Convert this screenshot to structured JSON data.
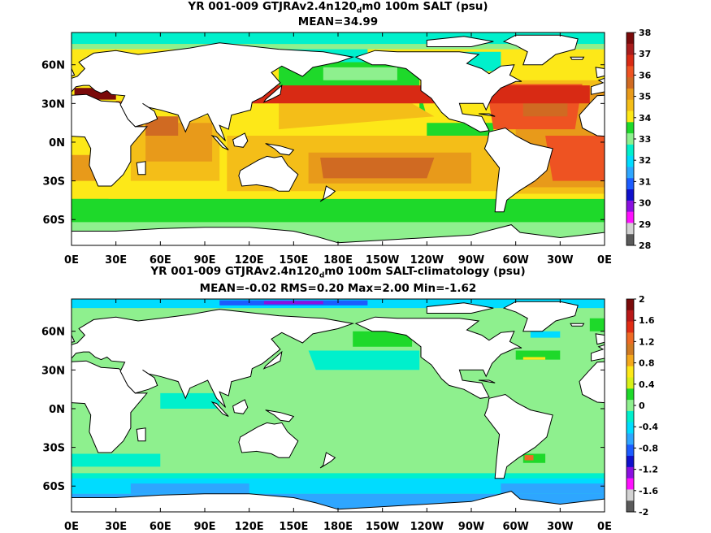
{
  "chart_data": [
    {
      "type": "heatmap",
      "title_prefix": "YR 001-009 GTJRAv2.4n120",
      "title_sub": "d",
      "title_suffix": "m0 100m SALT (psu)",
      "subtitle": "MEAN=34.99",
      "x_tick_labels": [
        "0E",
        "30E",
        "60E",
        "90E",
        "120E",
        "150E",
        "180E",
        "150W",
        "120W",
        "90W",
        "60W",
        "30W",
        "0E"
      ],
      "y_tick_labels": [
        "60N",
        "30N",
        "0N",
        "30S",
        "60S"
      ],
      "y_tick_values": [
        60,
        30,
        0,
        -30,
        -60
      ],
      "lon_range": [
        0,
        360
      ],
      "lat_range": [
        -80,
        85
      ],
      "colorbar": {
        "labels": [
          "38",
          "37",
          "36",
          "35",
          "34",
          "33",
          "32",
          "31",
          "30",
          "29",
          "28"
        ],
        "colors": [
          "#7a0a0a",
          "#a81c1c",
          "#d82a14",
          "#ee5322",
          "#d06a22",
          "#e89a1a",
          "#f4be18",
          "#fde818",
          "#1ed92a",
          "#8ef08e",
          "#00f0cc",
          "#00dcff",
          "#2ea6ff",
          "#1c5cff",
          "#1010cc",
          "#8a10e0",
          "#ff10ff",
          "#d2d2d2",
          "#5a5a5a"
        ]
      }
    },
    {
      "type": "heatmap",
      "title_prefix": "YR 001-009 GTJRAv2.4n120",
      "title_sub": "d",
      "title_suffix": "m0 100m SALT-climatology (psu)",
      "subtitle": "MEAN=-0.02   RMS=0.20   Max=2.00   Min=-1.62",
      "x_tick_labels": [
        "0E",
        "30E",
        "60E",
        "90E",
        "120E",
        "150E",
        "180E",
        "150W",
        "120W",
        "90W",
        "60W",
        "30W",
        "0E"
      ],
      "y_tick_labels": [
        "60N",
        "30N",
        "0N",
        "30S",
        "60S"
      ],
      "y_tick_values": [
        60,
        30,
        0,
        -30,
        -60
      ],
      "lon_range": [
        0,
        360
      ],
      "lat_range": [
        -80,
        85
      ],
      "colorbar": {
        "labels": [
          "2",
          "1.6",
          "1.2",
          "0.8",
          "0.4",
          "0",
          "-0.4",
          "-0.8",
          "-1.2",
          "-1.6",
          "-2"
        ],
        "colors": [
          "#7a0a0a",
          "#b81818",
          "#e02c14",
          "#ee6a24",
          "#d07a22",
          "#f4a81c",
          "#fde818",
          "#d8f018",
          "#1ed92a",
          "#8ef08e",
          "#00f0cc",
          "#00dcff",
          "#2ea6ff",
          "#1c5cff",
          "#1010cc",
          "#8a10e0",
          "#ff10ff",
          "#d2d2d2",
          "#5a5a5a"
        ]
      }
    }
  ]
}
